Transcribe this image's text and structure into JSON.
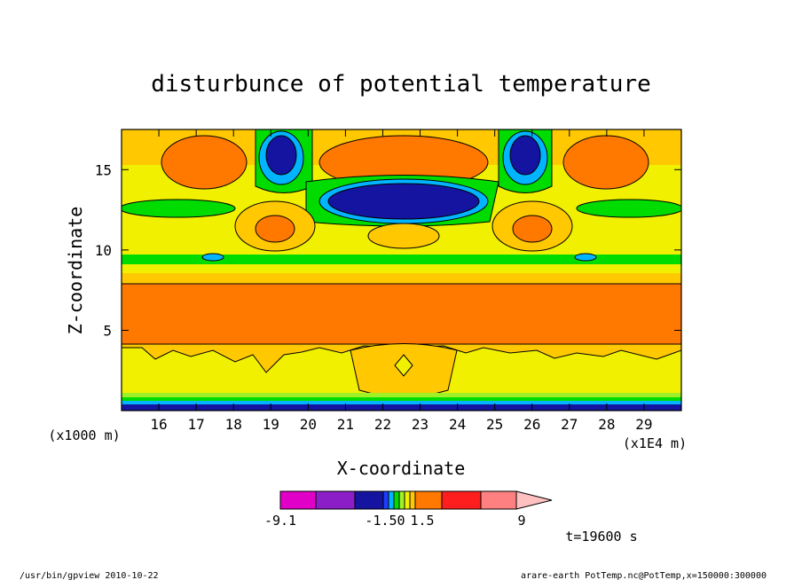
{
  "chart_data": {
    "type": "heatmap",
    "title": "disturbunce of potential temperature",
    "xlabel": "X-coordinate",
    "ylabel": "Z-coordinate",
    "x_unit_left": "(x1000 m)",
    "x_unit_right": "(x1E4 m)",
    "x_ticks": [
      "16",
      "17",
      "18",
      "19",
      "20",
      "21",
      "22",
      "23",
      "24",
      "25",
      "26",
      "27",
      "28",
      "29"
    ],
    "y_ticks": [
      "5",
      "10",
      "15"
    ],
    "xlim": [
      15.0,
      30.0
    ],
    "ylim": [
      0.0,
      17.5
    ],
    "time_label": "t=19600 s",
    "colorbar": {
      "labels": [
        "-9.1",
        "-1.50",
        "1.5",
        "9"
      ],
      "colors": [
        "#e000c8",
        "#8c1ec8",
        "#1414a0",
        "#1e3cff",
        "#00b4ff",
        "#00dc00",
        "#a0f028",
        "#f0f000",
        "#ffc800",
        "#ff7800",
        "#ff1e1e",
        "#ff8080",
        "#ffc0c0"
      ]
    },
    "footer_left": "/usr/bin/gpview   2010-10-22",
    "footer_right": "arare-earth_PotTemp.nc@PotTemp,x=150000:300000"
  }
}
